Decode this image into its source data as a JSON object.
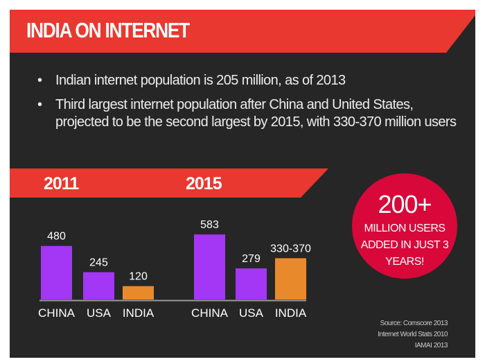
{
  "title": "INDIA ON INTERNET",
  "bullets": [
    "Indian internet population is 205 million, as of 2013",
    "Third largest internet population after China and United States, projected to be the second largest by 2015, with 330-370 million users"
  ],
  "colors": {
    "background": "#262626",
    "band": "#e8382f",
    "circle": "#d8083a",
    "bar_other": "#a436f5",
    "bar_india": "#e88a2c"
  },
  "chart_data": [
    {
      "type": "bar",
      "title": "2011",
      "categories": [
        "CHINA",
        "USA",
        "INDIA"
      ],
      "values": [
        480,
        245,
        120
      ],
      "labels": [
        "480",
        "245",
        "120"
      ]
    },
    {
      "type": "bar",
      "title": "2015",
      "categories": [
        "CHINA",
        "USA",
        "INDIA"
      ],
      "values": [
        583,
        279,
        [
          330,
          370
        ]
      ],
      "labels": [
        "583",
        "279",
        "330-370"
      ]
    }
  ],
  "callout": {
    "big": "200+",
    "lines": [
      "MILLION USERS",
      "ADDED IN JUST 3",
      "YEARS!"
    ]
  },
  "source": [
    "Source: Comscore 2013",
    "Internet World Stats 2010",
    "IAMAI 2013"
  ]
}
